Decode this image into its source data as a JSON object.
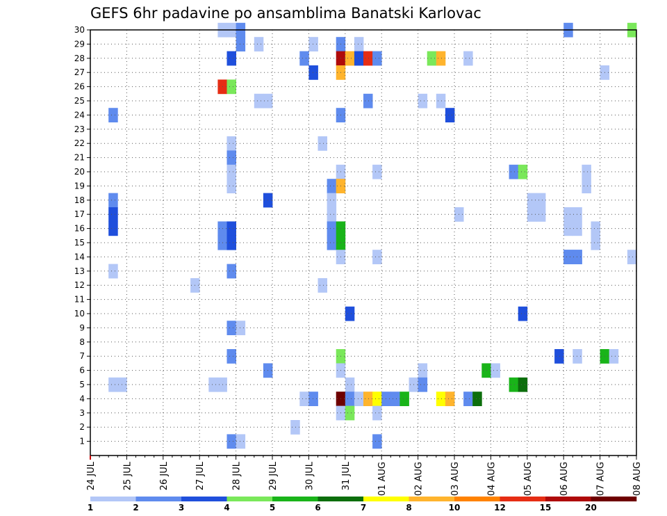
{
  "chart_data": {
    "type": "heatmap",
    "title": "GEFS 6hr padavine po ansamblima Banatski Karlovac",
    "xlabel": "",
    "ylabel": "",
    "x_ticks": [
      "24 JUL",
      "25 JUL",
      "26 JUL",
      "27 JUL",
      "28 JUL",
      "29 JUL",
      "30 JUL",
      "31 JUL",
      "01 AUG",
      "02 AUG",
      "03 AUG",
      "04 AUG",
      "05 AUG",
      "06 AUG",
      "07 AUG",
      "08 AUG"
    ],
    "y_ticks": [
      1,
      2,
      3,
      4,
      5,
      6,
      7,
      8,
      9,
      10,
      11,
      12,
      13,
      14,
      15,
      16,
      17,
      18,
      19,
      20,
      21,
      22,
      23,
      24,
      25,
      26,
      27,
      28,
      29,
      30
    ],
    "x_range": [
      0,
      60
    ],
    "y_range": [
      0,
      30
    ],
    "grid": true,
    "colorbar": {
      "labels": [
        "1",
        "2",
        "3",
        "4",
        "5",
        "6",
        "7",
        "8",
        "10",
        "12",
        "15",
        "20"
      ],
      "colors": [
        "#b3c7f7",
        "#5f8bee",
        "#1f4fdc",
        "#7ae85a",
        "#19b419",
        "#0c6e0c",
        "#ffff00",
        "#ffb42d",
        "#ff8200",
        "#e62d14",
        "#af0a0a",
        "#6e0000"
      ]
    },
    "cells": [
      {
        "t": 14.5,
        "m": 30,
        "v": 1.5
      },
      {
        "t": 15.5,
        "m": 30,
        "v": 1.5
      },
      {
        "t": 16.5,
        "m": 30,
        "v": 2.5
      },
      {
        "t": 52.5,
        "m": 30,
        "v": 2.5
      },
      {
        "t": 59.5,
        "m": 30,
        "v": 4.5
      },
      {
        "t": 16.5,
        "m": 29,
        "v": 2.5
      },
      {
        "t": 18.5,
        "m": 29,
        "v": 1.5
      },
      {
        "t": 24.5,
        "m": 29,
        "v": 1.5
      },
      {
        "t": 27.5,
        "m": 29,
        "v": 2.5
      },
      {
        "t": 29.5,
        "m": 29,
        "v": 1.5
      },
      {
        "t": 15.5,
        "m": 28,
        "v": 3.5
      },
      {
        "t": 23.5,
        "m": 28,
        "v": 2.5
      },
      {
        "t": 27.5,
        "m": 28,
        "v": 16
      },
      {
        "t": 28.5,
        "m": 28,
        "v": 9
      },
      {
        "t": 29.5,
        "m": 28,
        "v": 3.5
      },
      {
        "t": 30.5,
        "m": 28,
        "v": 13
      },
      {
        "t": 31.5,
        "m": 28,
        "v": 2.5
      },
      {
        "t": 37.5,
        "m": 28,
        "v": 4.5
      },
      {
        "t": 38.5,
        "m": 28,
        "v": 9
      },
      {
        "t": 41.5,
        "m": 28,
        "v": 1.5
      },
      {
        "t": 24.5,
        "m": 27,
        "v": 3.5
      },
      {
        "t": 27.5,
        "m": 27,
        "v": 9
      },
      {
        "t": 56.5,
        "m": 27,
        "v": 1.5
      },
      {
        "t": 14.5,
        "m": 26,
        "v": 13
      },
      {
        "t": 15.5,
        "m": 26,
        "v": 4.5
      },
      {
        "t": 18.5,
        "m": 25,
        "v": 1.5
      },
      {
        "t": 19.5,
        "m": 25,
        "v": 1.5
      },
      {
        "t": 30.5,
        "m": 25,
        "v": 2.5
      },
      {
        "t": 36.5,
        "m": 25,
        "v": 1.5
      },
      {
        "t": 38.5,
        "m": 25,
        "v": 1.5
      },
      {
        "t": 2.5,
        "m": 24,
        "v": 2.5
      },
      {
        "t": 27.5,
        "m": 24,
        "v": 2.5
      },
      {
        "t": 39.5,
        "m": 24,
        "v": 3.5
      },
      {
        "t": 15.5,
        "m": 22,
        "v": 1.5
      },
      {
        "t": 25.5,
        "m": 22,
        "v": 1.5
      },
      {
        "t": 15.5,
        "m": 21,
        "v": 2.5
      },
      {
        "t": 15.5,
        "m": 20,
        "v": 1.5
      },
      {
        "t": 27.5,
        "m": 20,
        "v": 1.5
      },
      {
        "t": 31.5,
        "m": 20,
        "v": 1.5
      },
      {
        "t": 46.5,
        "m": 20,
        "v": 2.5
      },
      {
        "t": 47.5,
        "m": 20,
        "v": 4.5
      },
      {
        "t": 54.5,
        "m": 20,
        "v": 1.5
      },
      {
        "t": 15.5,
        "m": 19,
        "v": 1.5
      },
      {
        "t": 27.5,
        "m": 19,
        "v": 1.5
      },
      {
        "t": 54.5,
        "m": 19,
        "v": 1.5
      },
      {
        "t": 26.5,
        "m": 19,
        "v": 2.5
      },
      {
        "t": 27.5,
        "m": 18.99,
        "v": 9
      },
      {
        "t": 2.5,
        "m": 18,
        "v": 2.5
      },
      {
        "t": 19.5,
        "m": 18,
        "v": 3.5
      },
      {
        "t": 26.5,
        "m": 18,
        "v": 1.5
      },
      {
        "t": 48.5,
        "m": 18,
        "v": 1.5
      },
      {
        "t": 49.5,
        "m": 18,
        "v": 1.5
      },
      {
        "t": 2.5,
        "m": 17,
        "v": 3.5
      },
      {
        "t": 26.5,
        "m": 17,
        "v": 1.5
      },
      {
        "t": 40.5,
        "m": 17,
        "v": 1.5
      },
      {
        "t": 52.5,
        "m": 17,
        "v": 1.5
      },
      {
        "t": 53.5,
        "m": 17,
        "v": 1.5
      },
      {
        "t": 48.5,
        "m": 17,
        "v": 1.5
      },
      {
        "t": 49.5,
        "m": 17,
        "v": 1.5
      },
      {
        "t": 2.5,
        "m": 16,
        "v": 3.5
      },
      {
        "t": 14.5,
        "m": 16,
        "v": 2.5
      },
      {
        "t": 15.5,
        "m": 16,
        "v": 3.5
      },
      {
        "t": 26.5,
        "m": 16,
        "v": 2.5
      },
      {
        "t": 27.5,
        "m": 16,
        "v": 5.5
      },
      {
        "t": 52.5,
        "m": 16,
        "v": 1.5
      },
      {
        "t": 53.5,
        "m": 16,
        "v": 1.5
      },
      {
        "t": 55.5,
        "m": 16,
        "v": 1.5
      },
      {
        "t": 14.5,
        "m": 15,
        "v": 2.5
      },
      {
        "t": 15.5,
        "m": 15,
        "v": 3.5
      },
      {
        "t": 26.5,
        "m": 15,
        "v": 2.5
      },
      {
        "t": 27.5,
        "m": 15,
        "v": 5.5
      },
      {
        "t": 55.5,
        "m": 15,
        "v": 1.5
      },
      {
        "t": 27.5,
        "m": 14,
        "v": 1.5
      },
      {
        "t": 31.5,
        "m": 14,
        "v": 1.5
      },
      {
        "t": 52.5,
        "m": 14,
        "v": 2.5
      },
      {
        "t": 53.5,
        "m": 14,
        "v": 2.5
      },
      {
        "t": 59.5,
        "m": 14,
        "v": 1.5
      },
      {
        "t": 2.5,
        "m": 13,
        "v": 1.5
      },
      {
        "t": 15.5,
        "m": 13,
        "v": 2.5
      },
      {
        "t": 52.5,
        "m": 13.99,
        "v": 2.5
      },
      {
        "t": 53.5,
        "m": 13.99,
        "v": 2.5
      },
      {
        "t": 11.5,
        "m": 12,
        "v": 1.5
      },
      {
        "t": 25.5,
        "m": 12,
        "v": 1.5
      },
      {
        "t": 28.5,
        "m": 10,
        "v": 3.5
      },
      {
        "t": 47.5,
        "m": 10,
        "v": 3.5
      },
      {
        "t": 15.5,
        "m": 9,
        "v": 2.5
      },
      {
        "t": 16.5,
        "m": 9,
        "v": 1.5
      },
      {
        "t": 15.5,
        "m": 7,
        "v": 2.5
      },
      {
        "t": 27.5,
        "m": 7,
        "v": 4.5
      },
      {
        "t": 51.5,
        "m": 7,
        "v": 3.5
      },
      {
        "t": 53.5,
        "m": 7,
        "v": 1.5
      },
      {
        "t": 56.5,
        "m": 7,
        "v": 5.5
      },
      {
        "t": 57.5,
        "m": 7,
        "v": 1.5
      },
      {
        "t": 19.5,
        "m": 6,
        "v": 2.5
      },
      {
        "t": 27.5,
        "m": 6,
        "v": 1.5
      },
      {
        "t": 36.5,
        "m": 6,
        "v": 1.5
      },
      {
        "t": 43.5,
        "m": 6,
        "v": 5.5
      },
      {
        "t": 44.5,
        "m": 6,
        "v": 1.5
      },
      {
        "t": 2.5,
        "m": 5,
        "v": 1.5
      },
      {
        "t": 3.5,
        "m": 5,
        "v": 1.5
      },
      {
        "t": 13.5,
        "m": 5,
        "v": 1.5
      },
      {
        "t": 14.5,
        "m": 5,
        "v": 1.5
      },
      {
        "t": 28.5,
        "m": 5,
        "v": 1.5
      },
      {
        "t": 35.5,
        "m": 5,
        "v": 1.5
      },
      {
        "t": 36.5,
        "m": 5,
        "v": 2.5
      },
      {
        "t": 46.5,
        "m": 5,
        "v": 5.5
      },
      {
        "t": 47.5,
        "m": 5,
        "v": 6.5
      },
      {
        "t": 23.5,
        "m": 4,
        "v": 1.5
      },
      {
        "t": 24.5,
        "m": 4,
        "v": 2.5
      },
      {
        "t": 27.5,
        "m": 4,
        "v": 25
      },
      {
        "t": 28.5,
        "m": 4,
        "v": 2.5
      },
      {
        "t": 29.5,
        "m": 4,
        "v": 1.5
      },
      {
        "t": 30.5,
        "m": 4,
        "v": 9
      },
      {
        "t": 31.5,
        "m": 4,
        "v": 7.5
      },
      {
        "t": 32.5,
        "m": 4,
        "v": 2.5
      },
      {
        "t": 33.5,
        "m": 4,
        "v": 2.5
      },
      {
        "t": 34.5,
        "m": 4,
        "v": 5.5
      },
      {
        "t": 38.5,
        "m": 4,
        "v": 7.5
      },
      {
        "t": 39.5,
        "m": 4,
        "v": 9
      },
      {
        "t": 41.5,
        "m": 4,
        "v": 2.5
      },
      {
        "t": 42.5,
        "m": 4,
        "v": 6.5
      },
      {
        "t": 27.5,
        "m": 3,
        "v": 1.5
      },
      {
        "t": 28.5,
        "m": 3,
        "v": 4.5
      },
      {
        "t": 31.5,
        "m": 3,
        "v": 1.5
      },
      {
        "t": 22.5,
        "m": 2,
        "v": 1.5
      },
      {
        "t": 15.5,
        "m": 1,
        "v": 2.5
      },
      {
        "t": 16.5,
        "m": 1,
        "v": 1.5
      },
      {
        "t": 31.5,
        "m": 1,
        "v": 2.5
      }
    ]
  }
}
